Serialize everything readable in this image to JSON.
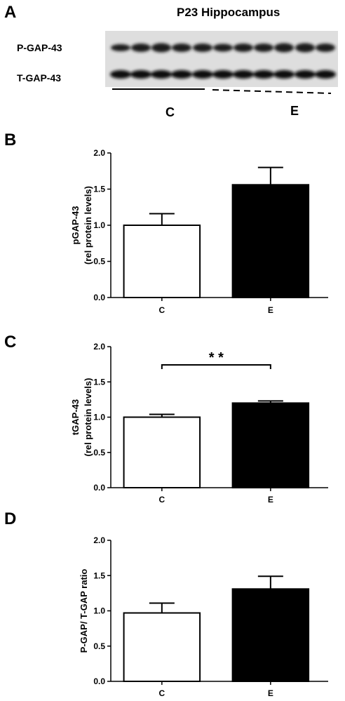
{
  "panel_a": {
    "letter": "A",
    "title": "P23 Hippocampus",
    "row_labels": [
      "P-GAP-43",
      "T-GAP-43"
    ],
    "group_labels": [
      "C",
      "E"
    ]
  },
  "chart_data": [
    {
      "type": "bar",
      "panel": "B",
      "categories": [
        "C",
        "E"
      ],
      "values": [
        1.0,
        1.56
      ],
      "errors": [
        0.16,
        0.24
      ],
      "fills": [
        "#ffffff",
        "#000000"
      ],
      "ylabel_lines": [
        "pGAP-43",
        "(rel protein levels)"
      ],
      "ylim": [
        0,
        2.0
      ],
      "yticks": [
        "0.0",
        "0.5",
        "1.0",
        "1.5",
        "2.0"
      ],
      "significance": ""
    },
    {
      "type": "bar",
      "panel": "C",
      "categories": [
        "C",
        "E"
      ],
      "values": [
        1.0,
        1.2
      ],
      "errors": [
        0.04,
        0.03
      ],
      "fills": [
        "#ffffff",
        "#000000"
      ],
      "ylabel_lines": [
        "tGAP-43",
        "(rel protein levels)"
      ],
      "ylim": [
        0,
        2.0
      ],
      "yticks": [
        "0.0",
        "0.5",
        "1.0",
        "1.5",
        "2.0"
      ],
      "significance": "* *"
    },
    {
      "type": "bar",
      "panel": "D",
      "categories": [
        "C",
        "E"
      ],
      "values": [
        0.97,
        1.31
      ],
      "errors": [
        0.14,
        0.18
      ],
      "fills": [
        "#ffffff",
        "#000000"
      ],
      "ylabel_lines": [
        "P-GAP/ T-GAP ratio"
      ],
      "ylim": [
        0,
        2.0
      ],
      "yticks": [
        "0.0",
        "0.5",
        "1.0",
        "1.5",
        "2.0"
      ],
      "significance": ""
    }
  ]
}
